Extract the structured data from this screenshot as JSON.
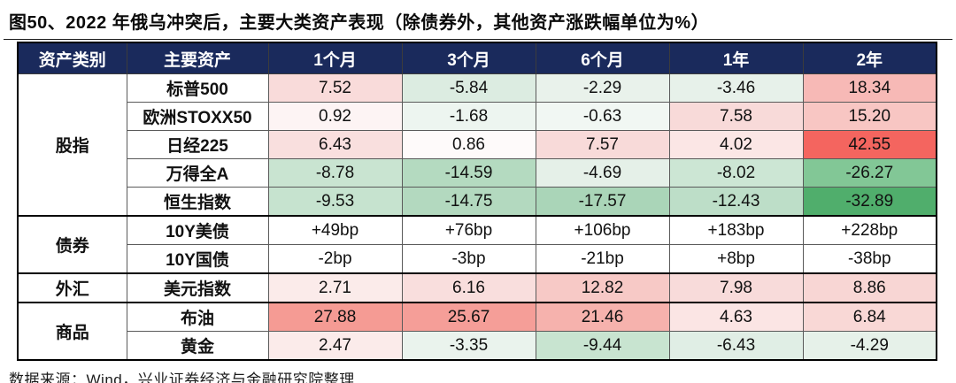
{
  "title": "图50、2022 年俄乌冲突后，主要大类资产表现（除债券外，其他资产涨跌幅单位为%）",
  "source": "数据来源：Wind，兴业证券经济与金融研究院整理",
  "colors": {
    "header_bg": "#1a2a5c",
    "header_text": "#ffffff",
    "strong_red": "#f4655f",
    "strong_green": "#50ae6c"
  },
  "chart_data": {
    "type": "table",
    "title": "图50、2022 年俄乌冲突后，主要大类资产表现（除债券外，其他资产涨跌幅单位为%）",
    "headers": [
      "资产类别",
      "主要资产",
      "1个月",
      "3个月",
      "6个月",
      "1年",
      "2年"
    ],
    "groups": [
      {
        "category": "股指",
        "rows": [
          {
            "asset": "标普500",
            "values": [
              "7.52",
              "-5.84",
              "-2.29",
              "-3.46",
              "18.34"
            ],
            "colors": [
              "#f9dbda",
              "#dcece1",
              "#e9f2eb",
              "#e7f1ea",
              "#f7b9b6"
            ]
          },
          {
            "asset": "欧洲STOXX50",
            "values": [
              "0.92",
              "-1.68",
              "-0.63",
              "7.58",
              "15.20"
            ],
            "colors": [
              "#fdf4f4",
              "#edf5f0",
              "#f1f7f3",
              "#f8dad9",
              "#f8c6c3"
            ]
          },
          {
            "asset": "日经225",
            "values": [
              "6.43",
              "0.86",
              "7.57",
              "4.02",
              "42.55"
            ],
            "colors": [
              "#f9dfde",
              "#fefafa",
              "#f8dad9",
              "#fbe6e5",
              "#f4655f"
            ]
          },
          {
            "asset": "万得全A",
            "values": [
              "-8.78",
              "-14.59",
              "-4.69",
              "-8.02",
              "-26.27"
            ],
            "colors": [
              "#c9e4d1",
              "#b4dac0",
              "#e5f0e8",
              "#cce6d4",
              "#82c796"
            ]
          },
          {
            "asset": "恒生指数",
            "values": [
              "-9.53",
              "-14.75",
              "-17.57",
              "-12.43",
              "-32.89"
            ],
            "colors": [
              "#c6e3cf",
              "#b3d9bf",
              "#aad5b8",
              "#bddec8",
              "#50ae6c"
            ]
          }
        ]
      },
      {
        "category": "债券",
        "rows": [
          {
            "asset": "10Y美债",
            "values": [
              "+49bp",
              "+76bp",
              "+106bp",
              "+183bp",
              "+228bp"
            ],
            "colors": [
              "#ffffff",
              "#ffffff",
              "#ffffff",
              "#ffffff",
              "#ffffff"
            ]
          },
          {
            "asset": "10Y国债",
            "values": [
              "-2bp",
              "-3bp",
              "-21bp",
              "+8bp",
              "-38bp"
            ],
            "colors": [
              "#ffffff",
              "#ffffff",
              "#ffffff",
              "#ffffff",
              "#ffffff"
            ]
          }
        ]
      },
      {
        "category": "外汇",
        "rows": [
          {
            "asset": "美元指数",
            "values": [
              "2.71",
              "6.16",
              "12.82",
              "7.98",
              "8.86"
            ],
            "colors": [
              "#fbebea",
              "#f9dedd",
              "#f7c9c6",
              "#f8dbda",
              "#f8d6d4"
            ]
          }
        ]
      },
      {
        "category": "商品",
        "rows": [
          {
            "asset": "布油",
            "values": [
              "27.88",
              "25.67",
              "21.46",
              "4.63",
              "6.84"
            ],
            "colors": [
              "#f59b94",
              "#f59e98",
              "#f6b2ad",
              "#fbe5e4",
              "#f9d8d6"
            ]
          },
          {
            "asset": "黄金",
            "values": [
              "2.47",
              "-3.35",
              "-9.44",
              "-6.43",
              "-4.29"
            ],
            "colors": [
              "#fbebea",
              "#eaf3ed",
              "#c8e4d0",
              "#e0eee5",
              "#e6f1e9"
            ]
          }
        ]
      }
    ]
  }
}
